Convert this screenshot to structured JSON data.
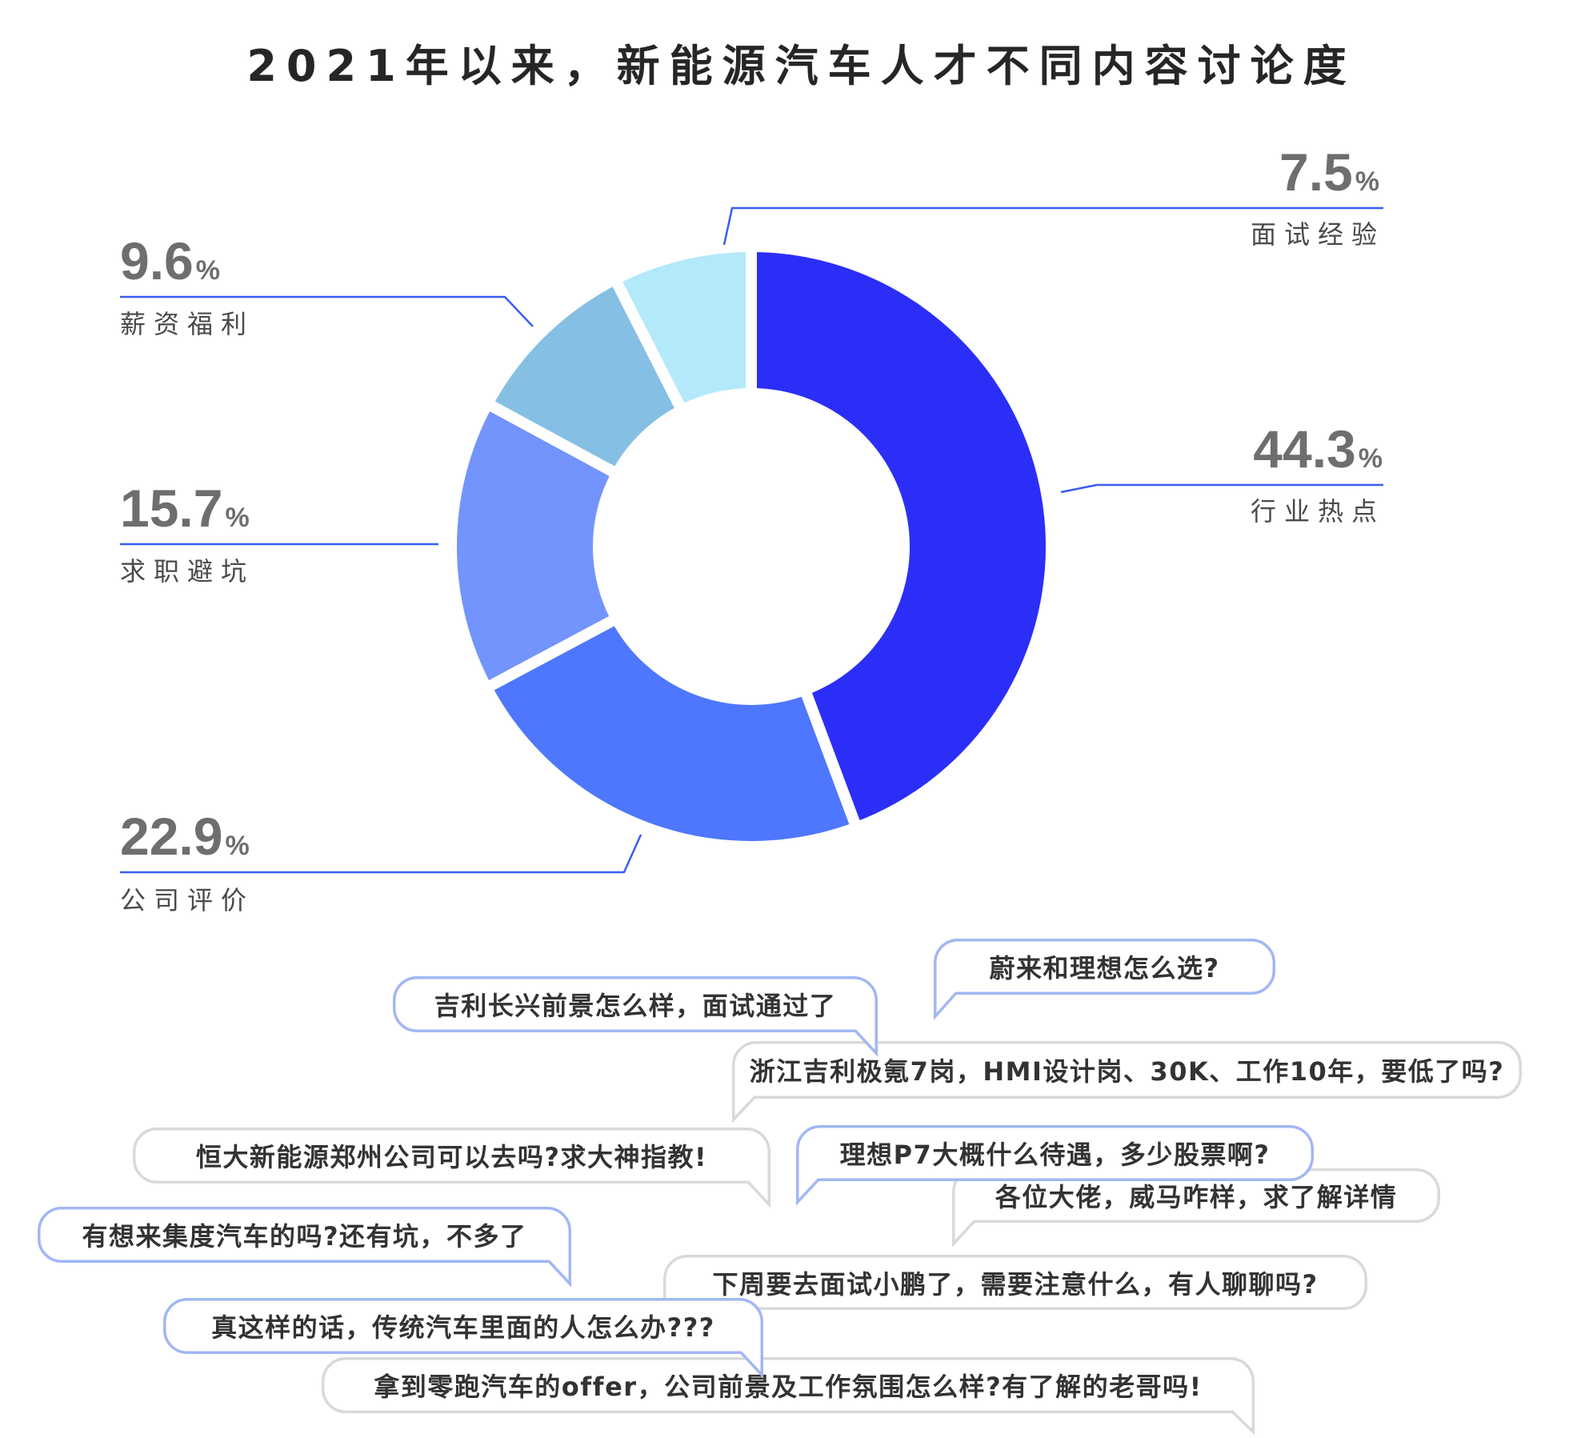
{
  "chart_data": {
    "type": "pie",
    "donut": true,
    "title": "2021年以来，新能源汽车人才不同内容讨论度",
    "categories": [
      "行业热点",
      "公司评价",
      "求职避坑",
      "薪资福利",
      "面试经验"
    ],
    "values": [
      44.3,
      22.9,
      15.7,
      9.6,
      7.5
    ],
    "unit": "%",
    "colors": [
      "#2b2ef7",
      "#4e77fd",
      "#7394fc",
      "#85c0e4",
      "#b3e9fb"
    ]
  },
  "comments": [
    {
      "text": "蔚来和理想怎么选?",
      "border": "#a2b7f2"
    },
    {
      "text": "吉利长兴前景怎么样，面试通过了",
      "border": "#a2b7f2"
    },
    {
      "text": "浙江吉利极氪7岗，HMI设计岗、30K、工作10年，要低了吗?",
      "border": "#d9d9d9"
    },
    {
      "text": "恒大新能源郑州公司可以去吗?求大神指教!",
      "border": "#d9d9d9"
    },
    {
      "text": "理想P7大概什么待遇，多少股票啊?",
      "border": "#a2b7f2"
    },
    {
      "text": "各位大佬，威马咋样，求了解详情",
      "border": "#d9d9d9"
    },
    {
      "text": "有想来集度汽车的吗?还有坑，不多了",
      "border": "#a2b7f2"
    },
    {
      "text": "下周要去面试小鹏了，需要注意什么，有人聊聊吗?",
      "border": "#d9d9d9"
    },
    {
      "text": "真这样的话，传统汽车里面的人怎么办???",
      "border": "#a2b7f2"
    },
    {
      "text": "拿到零跑汽车的offer，公司前景及工作氛围怎么样?有了解的老哥吗!",
      "border": "#d9d9d9"
    }
  ]
}
